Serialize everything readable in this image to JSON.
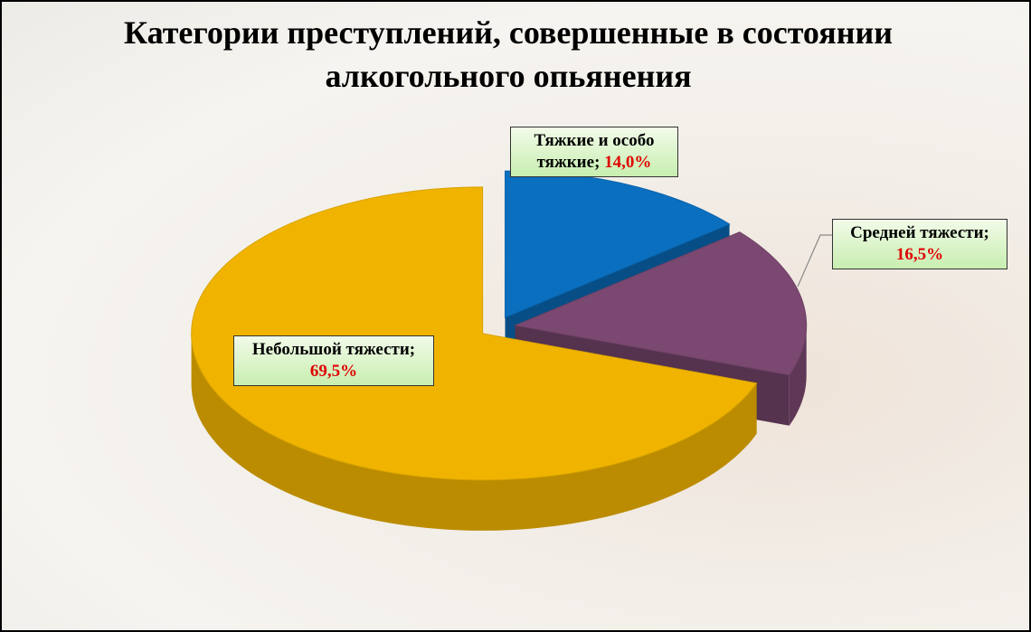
{
  "chart_data": {
    "type": "pie3d",
    "title": "Категории преступлений, совершенные в состоянии алкогольного опьянения",
    "categories": [
      "Тяжкие и особо тяжкие",
      "Средней тяжести",
      "Небольшой тяжести"
    ],
    "label_separator": ";",
    "values": [
      14.0,
      16.5,
      69.5
    ],
    "value_labels": [
      "14,0%",
      "16,5%",
      "69,5%"
    ],
    "colors": [
      "#0a6fbf",
      "#7a4870",
      "#f0b400"
    ]
  }
}
